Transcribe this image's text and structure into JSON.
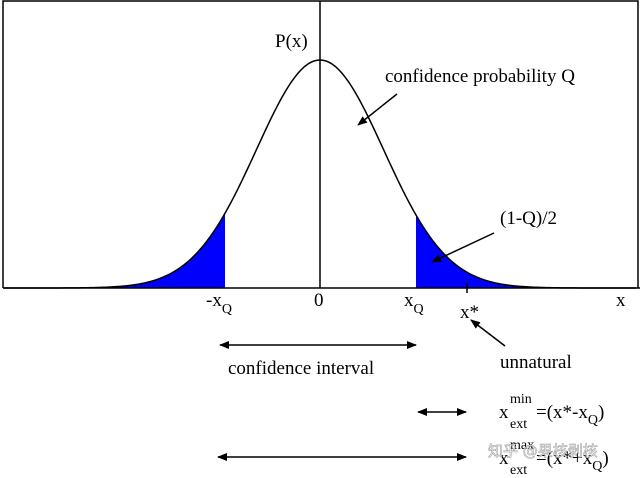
{
  "axis": {
    "y_label": "P(x)",
    "x_label": "x",
    "origin": "0",
    "neg_q": {
      "base": "-x",
      "sub": "Q"
    },
    "pos_q": {
      "base": "x",
      "sub": "Q"
    },
    "x_star": "x*"
  },
  "annotations": {
    "confidence": "confidence probability Q",
    "tail": "(1-Q)/2",
    "unnatural": "unnatural",
    "interval": "confidence interval"
  },
  "formulas": [
    {
      "base": "x",
      "sup": "min",
      "sub": "ext",
      "rest": "=(x*-x",
      "rest_sub": "Q",
      "close": ")"
    },
    {
      "base": "x",
      "sup": "max",
      "sub": "ext",
      "rest": "=(x*+x",
      "rest_sub": "Q",
      "close": ")"
    }
  ],
  "watermark": "知乎 @果核剥核"
}
